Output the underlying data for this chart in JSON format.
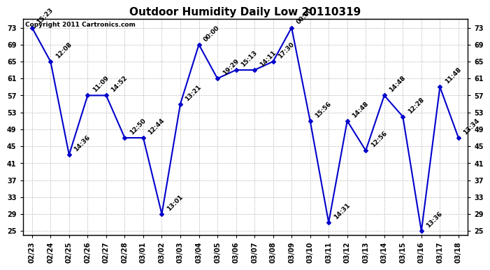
{
  "title": "Outdoor Humidity Daily Low 20110319",
  "copyright": "Copyright 2011 Cartronics.com",
  "dates": [
    "02/23",
    "02/24",
    "02/25",
    "02/26",
    "02/27",
    "02/28",
    "03/01",
    "03/02",
    "03/03",
    "03/04",
    "03/05",
    "03/06",
    "03/07",
    "03/08",
    "03/09",
    "03/10",
    "03/11",
    "03/12",
    "03/13",
    "03/14",
    "03/15",
    "03/16",
    "03/17",
    "03/18"
  ],
  "values": [
    73,
    65,
    43,
    57,
    57,
    47,
    47,
    29,
    55,
    69,
    61,
    63,
    63,
    65,
    73,
    51,
    27,
    51,
    44,
    57,
    52,
    25,
    59,
    47
  ],
  "labels": [
    "15:23",
    "12:08",
    "14:36",
    "11:09",
    "14:52",
    "12:50",
    "12:44",
    "13:01",
    "13:21",
    "00:00",
    "19:29",
    "15:13",
    "14:11",
    "17:30",
    "00:00",
    "15:56",
    "14:31",
    "14:48",
    "12:56",
    "14:48",
    "12:28",
    "13:36",
    "11:48",
    "13:34"
  ],
  "ylim": [
    24,
    75
  ],
  "yticks": [
    25,
    29,
    33,
    37,
    41,
    45,
    49,
    53,
    57,
    61,
    65,
    69,
    73
  ],
  "line_color": "#0000cc",
  "marker_color": "#0000cc",
  "bg_color": "#ffffff",
  "grid_color": "#bbbbbb",
  "title_fontsize": 11,
  "label_fontsize": 6.5,
  "tick_fontsize": 7,
  "copyright_fontsize": 6.5
}
